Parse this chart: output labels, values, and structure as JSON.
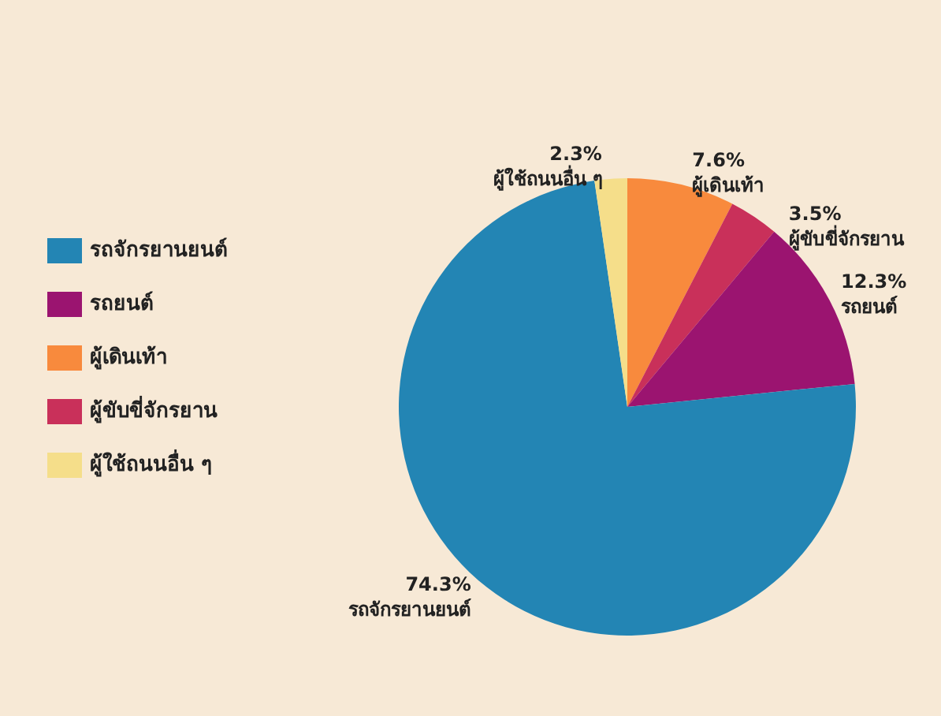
{
  "chart_data": {
    "type": "pie",
    "categories": [
      "รถจักรยานยนต์",
      "รถยนต์",
      "ผู้เดินเท้า",
      "ผู้ขับขี่จักรยาน",
      "ผู้ใช้ถนนอื่น ๆ"
    ],
    "values": [
      74.3,
      12.3,
      7.6,
      3.5,
      2.3
    ],
    "value_labels": [
      "74.3%",
      "12.3%",
      "7.6%",
      "3.5%",
      "2.3%"
    ],
    "colors": [
      "#2385b4",
      "#9b1470",
      "#f88a3d",
      "#c9305a",
      "#f5de8a"
    ],
    "legend": "left"
  }
}
